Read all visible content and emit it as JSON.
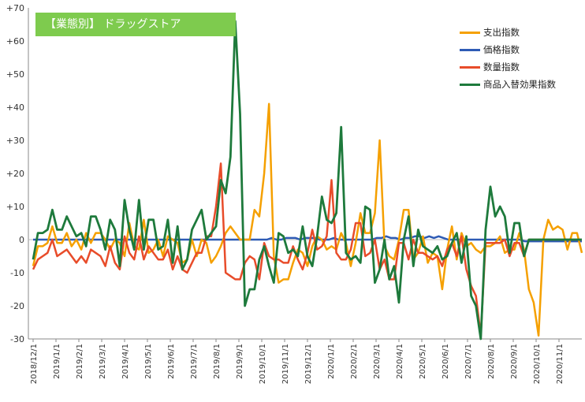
{
  "chart_data": {
    "type": "line",
    "title": "【業態別】 ドラッグストア",
    "xlabel": "",
    "ylabel": "",
    "ylim": [
      -30,
      70
    ],
    "y_ticks": [
      70,
      60,
      50,
      40,
      30,
      20,
      10,
      0,
      -10,
      -20,
      -30
    ],
    "y_tick_labels": [
      "+70",
      "+60",
      "+50",
      "+40",
      "+30",
      "+20",
      "+10",
      "0",
      "-10",
      "-20",
      "-30"
    ],
    "x_tick_labels": [
      "2018/12/1",
      "2019/1/1",
      "2019/2/1",
      "2019/3/1",
      "2019/4/1",
      "2019/5/1",
      "2019/6/1",
      "2019/7/1",
      "2019/8/1",
      "2019/9/1",
      "2019/10/1",
      "2019/11/1",
      "2019/12/1",
      "2020/1/1",
      "2020/2/1",
      "2020/3/1",
      "2020/4/1",
      "2020/5/1",
      "2020/6/1",
      "2020/7/1",
      "2020/8/1",
      "2020/9/1",
      "2020/10/1",
      "2020/11/1"
    ],
    "grid": false,
    "legend_position": "top-right",
    "series": [
      {
        "name": "支出指数",
        "color": "#f5a000",
        "values": [
          -8,
          -2,
          -2,
          -1,
          4,
          -1,
          -1,
          2,
          -2,
          0,
          -3,
          2,
          -1,
          2,
          2,
          0,
          -3,
          0,
          -1,
          -5,
          5,
          -2,
          -3,
          6,
          -4,
          -3,
          0,
          -5,
          1,
          0,
          -1,
          -7,
          -6,
          0,
          -5,
          0,
          -1,
          -7,
          -5,
          -2,
          2,
          4,
          2,
          0,
          0,
          0,
          9,
          7,
          20,
          41,
          -5,
          -13,
          -12,
          -12,
          -7,
          -3,
          -4,
          -8,
          -2,
          1,
          0,
          -3,
          -2,
          -3,
          2,
          -1,
          -8,
          -1,
          8,
          2,
          2,
          8,
          30,
          -2,
          -5,
          -6,
          0,
          9,
          9,
          -6,
          -4,
          1,
          -7,
          -4,
          -5,
          -15,
          -3,
          4,
          -6,
          2,
          -2,
          -1,
          -3,
          -4,
          -2,
          -2,
          -1,
          1,
          -4,
          -3,
          -3,
          2,
          -3,
          -15,
          -19,
          -29,
          0,
          6,
          3,
          4,
          3,
          -3,
          2,
          2,
          -4
        ],
        "__bind": "chart_data.series.0"
      },
      {
        "name": "価格指数",
        "color": "#2e5bb5",
        "values": [
          0,
          0,
          0,
          0,
          0,
          0,
          0,
          0,
          0,
          0,
          0,
          0,
          0,
          0,
          0,
          0,
          0,
          0,
          0,
          0,
          0,
          0,
          0,
          0,
          0,
          0,
          0,
          0,
          0,
          0,
          0,
          0,
          0,
          0,
          0,
          0,
          0,
          0,
          0,
          0,
          0,
          0,
          0,
          0,
          0,
          0,
          0,
          0,
          0,
          0,
          0.5,
          0,
          0,
          0.5,
          0.5,
          0.5,
          0,
          0.5,
          0.5,
          0.5,
          0,
          0,
          0,
          0.5,
          0,
          0,
          0,
          0,
          0,
          0,
          0,
          0,
          0.5,
          0.5,
          1,
          0.5,
          0.5,
          0,
          0.5,
          0.5,
          1,
          1,
          0.5,
          1,
          0.5,
          1,
          0.5,
          0,
          0,
          0,
          0,
          0,
          0,
          0,
          0,
          0,
          0,
          0,
          0,
          0,
          0,
          0,
          0,
          -0.5,
          -0.5,
          -0.5,
          -0.5,
          -0.5,
          -0.5,
          -0.5,
          -0.5,
          -0.5,
          -0.5,
          -0.5,
          -0.5,
          -0.5
        ]
      },
      {
        "name": "数量指数",
        "color": "#e84c2a",
        "values": [
          -9,
          -6,
          -5,
          -4,
          0,
          -5,
          -4,
          -3,
          -5,
          -7,
          -5,
          -7,
          -3,
          -4,
          -5,
          -8,
          -2,
          -7,
          -9,
          1,
          -4,
          -6,
          1,
          -6,
          -2,
          -4,
          -6,
          -6,
          -3,
          -9,
          -5,
          -9,
          -10,
          -7,
          -4,
          -4,
          1,
          1,
          10,
          23,
          -10,
          -11,
          -12,
          -12,
          -7,
          -5,
          -6,
          -12,
          -1,
          -5,
          -6,
          -6,
          -7,
          -7,
          -2,
          -6,
          -9,
          -4,
          3,
          -3,
          -2,
          1,
          18,
          -4,
          -6,
          -6,
          -3,
          5,
          5,
          -5,
          -4,
          0,
          -9,
          -6,
          -12,
          -12,
          -1,
          -1,
          -6,
          0,
          -4,
          -4,
          -5,
          -6,
          -5,
          -8,
          -3,
          -1,
          -5,
          1,
          -9,
          -14,
          -17,
          -29,
          -1,
          -1,
          -1,
          -1,
          0,
          -5,
          -1,
          -1,
          -5,
          0,
          0,
          0,
          0,
          0,
          0,
          0,
          0,
          0,
          0,
          0,
          0
        ]
      },
      {
        "name": "商品入替効果指数",
        "color": "#1e7a3c",
        "values": [
          -6,
          2,
          2,
          3,
          9,
          3,
          3,
          7,
          4,
          1,
          2,
          -2,
          7,
          7,
          3,
          -3,
          6,
          3,
          -8,
          12,
          3,
          -3,
          12,
          -3,
          6,
          6,
          -3,
          -2,
          6,
          -7,
          4,
          -9,
          -6,
          3,
          6,
          9,
          0,
          2,
          4,
          18,
          14,
          25,
          66,
          38,
          -20,
          -15,
          -15,
          -6,
          -2,
          -8,
          -13,
          2,
          1,
          -4,
          -3,
          -5,
          4,
          -5,
          -8,
          1,
          13,
          6,
          5,
          8,
          34,
          -4,
          -6,
          -5,
          -7,
          10,
          9,
          -13,
          -9,
          0,
          -12,
          -8,
          -19,
          0,
          7,
          -8,
          3,
          -2,
          -3,
          -4,
          -2,
          -6,
          -5,
          -1,
          2,
          -7,
          1,
          -17,
          -20,
          -31,
          3,
          16,
          7,
          10,
          7,
          -4,
          5,
          5,
          -5,
          0,
          0,
          0,
          0,
          0,
          0,
          0,
          0,
          0,
          0,
          0,
          0
        ]
      }
    ]
  }
}
